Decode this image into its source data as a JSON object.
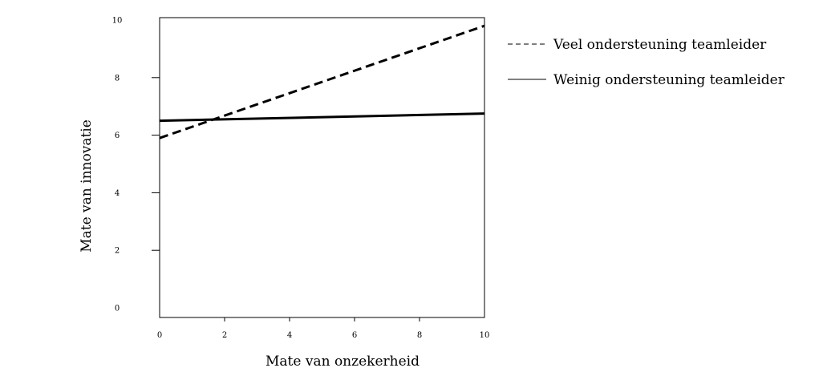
{
  "chart_data": {
    "type": "line",
    "title": "",
    "xlabel": "Mate van onzekerheid",
    "ylabel": "Mate van innovatie",
    "xlim": [
      0,
      10
    ],
    "ylim": [
      0,
      10
    ],
    "xticks": [
      0,
      2,
      4,
      6,
      8,
      10
    ],
    "yticks": [
      0,
      2,
      4,
      6,
      8,
      10
    ],
    "x_tick_labels": [
      "0",
      "2",
      "4",
      "6",
      "8",
      "10"
    ],
    "y_tick_labels": [
      "0",
      "2",
      "4",
      "6",
      "8",
      "10"
    ],
    "grid": false,
    "legend_position": "right",
    "series": [
      {
        "name": "Veel ondersteuning teamleider",
        "style": "dashed",
        "color": "#000000",
        "x": [
          0,
          10
        ],
        "y": [
          5.9,
          9.8
        ]
      },
      {
        "name": "Weinig ondersteuning teamleider",
        "style": "solid",
        "color": "#000000",
        "x": [
          0,
          10
        ],
        "y": [
          6.5,
          6.75
        ]
      }
    ]
  }
}
